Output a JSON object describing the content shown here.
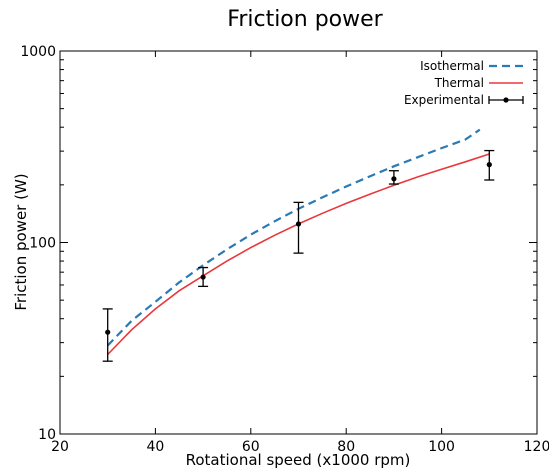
{
  "chart_data": {
    "type": "line",
    "title": "Friction power",
    "xlabel": "Rotational speed (x1000 rpm)",
    "ylabel": "Friction power (W)",
    "xlim": [
      20,
      120
    ],
    "ylim": [
      10,
      1000
    ],
    "yscale": "log",
    "grid": false,
    "legend_position": "top-right",
    "xticks": [
      20,
      40,
      60,
      80,
      100,
      120
    ],
    "xtick_labels": [
      "20",
      "40",
      "60",
      "80",
      "100",
      "120"
    ],
    "yticks": [
      10,
      100,
      1000
    ],
    "ytick_labels": [
      "10",
      "100",
      "1000"
    ],
    "series": [
      {
        "name": "Isothermal",
        "style": "dashed",
        "color": "#2a7ab5",
        "x": [
          30,
          35,
          40,
          45,
          50,
          55,
          60,
          65,
          70,
          75,
          80,
          85,
          90,
          95,
          100,
          105,
          108
        ],
        "y": [
          29,
          39,
          49,
          62,
          76,
          92,
          110,
          129,
          150,
          172,
          196,
          222,
          250,
          279,
          311,
          345,
          388
        ]
      },
      {
        "name": "Thermal",
        "style": "solid",
        "color": "#e8383b",
        "x": [
          30,
          35,
          40,
          45,
          50,
          55,
          60,
          65,
          70,
          75,
          80,
          85,
          90,
          95,
          100,
          105,
          110
        ],
        "y": [
          26,
          35,
          45,
          56,
          67,
          80,
          94,
          109,
          125,
          142,
          160,
          179,
          199,
          220,
          241,
          264,
          290
        ]
      },
      {
        "name": "Experimental",
        "style": "errorbar",
        "color": "#000000",
        "x": [
          30,
          50,
          70,
          90,
          110
        ],
        "y": [
          34,
          66,
          125,
          215,
          255
        ],
        "yerr_low": [
          24,
          59,
          88,
          202,
          212
        ],
        "yerr_high": [
          45,
          74,
          162,
          237,
          302
        ]
      }
    ]
  }
}
